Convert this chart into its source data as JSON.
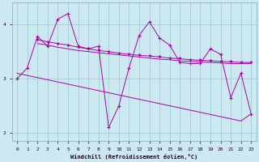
{
  "xlabel": "Windchill (Refroidissement éolien,°C)",
  "bg_color": "#cce8f0",
  "line_color": "#aa00aa",
  "grid_color": "#99cccc",
  "x": [
    0,
    1,
    2,
    3,
    4,
    5,
    6,
    7,
    8,
    9,
    10,
    11,
    12,
    13,
    14,
    15,
    16,
    17,
    18,
    19,
    20,
    21,
    22,
    23
  ],
  "line_jagged": [
    3.0,
    3.2,
    3.78,
    3.6,
    4.1,
    4.2,
    3.6,
    3.55,
    3.6,
    2.1,
    2.5,
    3.2,
    3.8,
    4.05,
    3.75,
    3.62,
    3.3,
    3.28,
    3.28,
    3.55,
    3.45,
    2.65,
    3.1,
    2.35
  ],
  "line_smooth1_x": [
    2,
    3,
    4,
    5,
    6,
    7,
    8,
    9,
    10,
    11,
    12,
    13,
    14,
    15,
    16,
    17,
    18,
    19,
    20,
    21,
    22,
    23
  ],
  "line_smooth1_y": [
    3.72,
    3.68,
    3.65,
    3.62,
    3.58,
    3.55,
    3.52,
    3.5,
    3.47,
    3.45,
    3.43,
    3.42,
    3.4,
    3.38,
    3.37,
    3.35,
    3.34,
    3.33,
    3.32,
    3.31,
    3.3,
    3.3
  ],
  "line_smooth2_x": [
    2,
    3,
    4,
    5,
    6,
    7,
    8,
    9,
    10,
    11,
    12,
    13,
    14,
    15,
    16,
    17,
    18,
    19,
    20,
    21,
    22,
    23
  ],
  "line_smooth2_y": [
    3.65,
    3.62,
    3.58,
    3.55,
    3.52,
    3.5,
    3.48,
    3.46,
    3.44,
    3.42,
    3.4,
    3.38,
    3.36,
    3.35,
    3.33,
    3.32,
    3.31,
    3.3,
    3.29,
    3.28,
    3.28,
    3.28
  ],
  "trend_x": [
    0,
    1,
    2,
    3,
    4,
    5,
    6,
    7,
    8,
    9,
    10,
    11,
    12,
    13,
    14,
    15,
    16,
    17,
    18,
    19,
    20,
    21,
    22,
    23
  ],
  "trend_y": [
    3.1,
    3.06,
    3.02,
    2.98,
    2.94,
    2.9,
    2.86,
    2.82,
    2.78,
    2.74,
    2.7,
    2.66,
    2.62,
    2.58,
    2.54,
    2.5,
    2.46,
    2.42,
    2.38,
    2.34,
    2.3,
    2.26,
    2.22,
    2.35
  ],
  "ylim": [
    1.85,
    4.4
  ],
  "yticks": [
    2,
    3,
    4
  ],
  "xticks": [
    0,
    1,
    2,
    3,
    4,
    5,
    6,
    7,
    8,
    9,
    10,
    11,
    12,
    13,
    14,
    15,
    16,
    17,
    18,
    19,
    20,
    21,
    22,
    23
  ]
}
